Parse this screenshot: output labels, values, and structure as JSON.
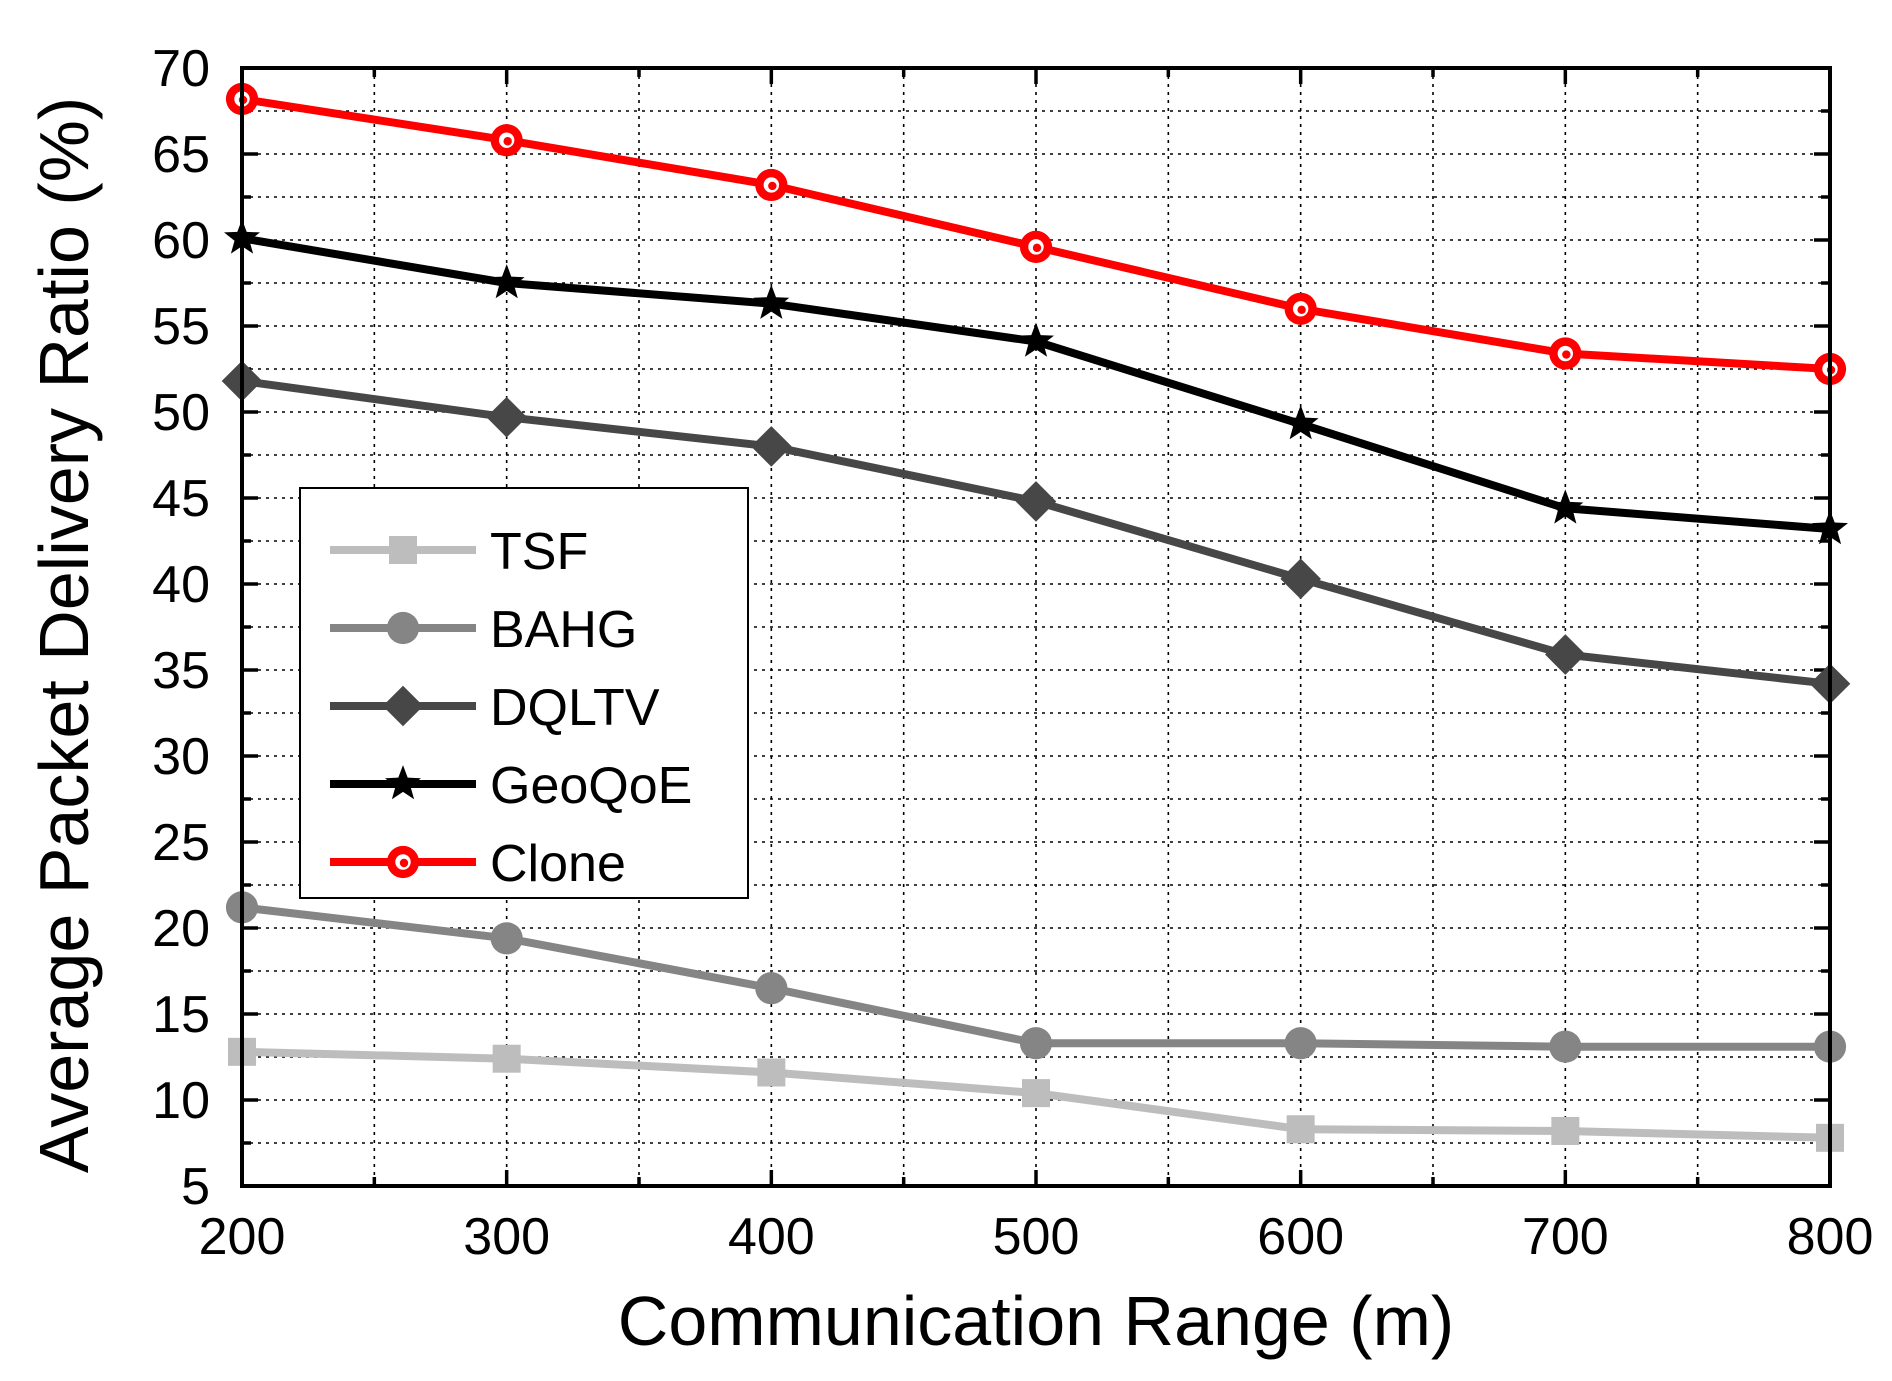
{
  "chart_data": {
    "type": "line",
    "title": "",
    "xlabel": "Communication Range (m)",
    "ylabel": "Average Packet Delivery Ratio (%)",
    "xlim": [
      200,
      800
    ],
    "ylim": [
      5,
      70
    ],
    "x": [
      200,
      300,
      400,
      500,
      600,
      700,
      800
    ],
    "x_ticks": [
      "200",
      "300",
      "400",
      "500",
      "600",
      "700",
      "800"
    ],
    "y_ticks": [
      "5",
      "10",
      "15",
      "20",
      "25",
      "30",
      "35",
      "40",
      "45",
      "50",
      "55",
      "60",
      "65",
      "70"
    ],
    "grid": true,
    "legend_position": "center-left",
    "series": [
      {
        "name": "TSF",
        "color": "#bdbdbd",
        "marker": "square",
        "values": [
          12.8,
          12.4,
          11.6,
          10.4,
          8.3,
          8.2,
          7.8
        ]
      },
      {
        "name": "BAHG",
        "color": "#858585",
        "marker": "circle",
        "values": [
          21.2,
          19.4,
          16.5,
          13.3,
          13.3,
          13.1,
          13.1
        ]
      },
      {
        "name": "DQLTV",
        "color": "#474747",
        "marker": "diamond",
        "values": [
          51.8,
          49.7,
          48.0,
          44.8,
          40.3,
          35.9,
          34.2
        ]
      },
      {
        "name": "GeoQoE",
        "color": "#000000",
        "marker": "star",
        "values": [
          60.1,
          57.5,
          56.3,
          54.1,
          49.3,
          44.4,
          43.2
        ]
      },
      {
        "name": "Clone",
        "color": "#ff0000",
        "marker": "ring",
        "values": [
          68.2,
          65.8,
          63.2,
          59.6,
          56.0,
          53.4,
          52.5
        ]
      }
    ]
  }
}
